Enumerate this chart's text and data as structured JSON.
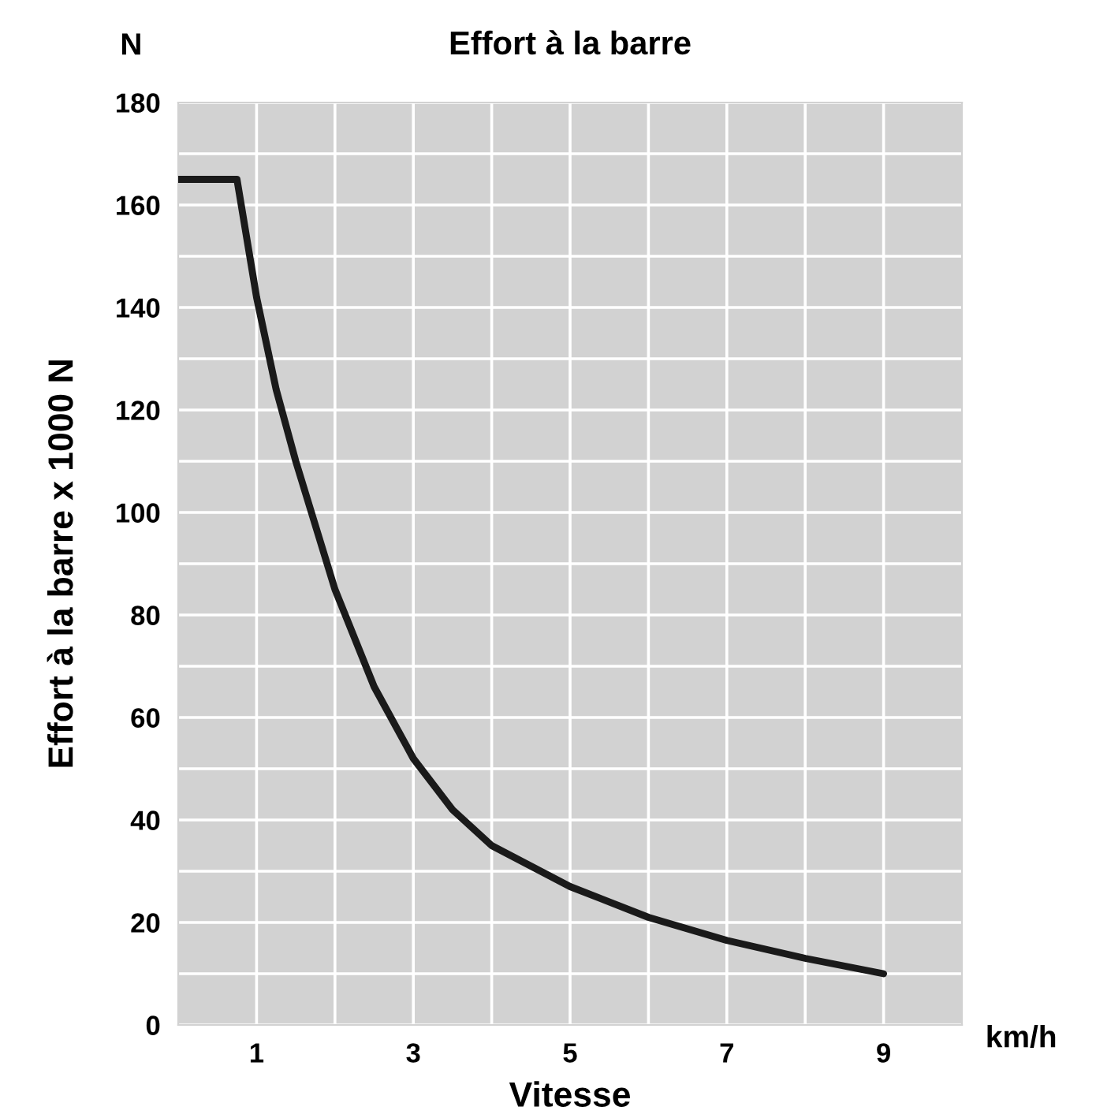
{
  "chart_data": {
    "type": "line",
    "title": "Effort à la barre",
    "xlabel": "Vitesse",
    "ylabel": "Effort à la barre x 1000 N",
    "annotations": [
      "N",
      "km/h"
    ],
    "x": [
      0,
      0.75,
      1,
      1.25,
      1.5,
      2,
      2.5,
      3,
      3.5,
      4,
      5,
      6,
      7,
      8,
      9
    ],
    "series": [
      {
        "color": "#1a1a1a",
        "values": [
          165,
          165,
          142,
          124,
          110,
          85,
          66,
          52,
          42,
          35,
          27,
          21,
          16.5,
          13,
          10
        ]
      }
    ],
    "xlim": [
      0,
      10
    ],
    "ylim": [
      0,
      180
    ],
    "xticks": [
      1,
      {
        "value": 2,
        "label": null
      },
      3,
      {
        "value": 4,
        "label": null
      },
      5,
      {
        "value": 6,
        "label": null
      },
      7,
      {
        "value": 8,
        "label": null
      },
      9
    ],
    "yticks": [
      0,
      {
        "value": 10,
        "label": null
      },
      20,
      {
        "value": 30,
        "label": null
      },
      40,
      {
        "value": 50,
        "label": null
      },
      60,
      {
        "value": 70,
        "label": null
      },
      80,
      {
        "value": 90,
        "label": null
      },
      100,
      {
        "value": 110,
        "label": null
      },
      120,
      {
        "value": 130,
        "label": null
      },
      140,
      {
        "value": 150,
        "label": null
      },
      160,
      {
        "value": 170,
        "label": null
      },
      180
    ],
    "grid": true,
    "marker": "none",
    "line_style": "solid",
    "legend": false
  }
}
